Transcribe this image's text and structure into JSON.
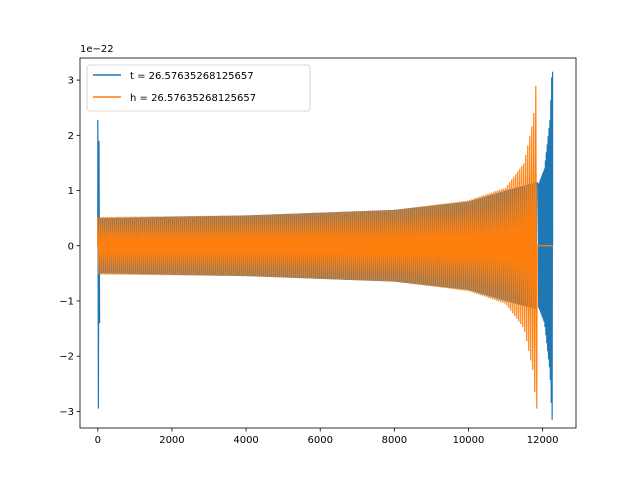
{
  "chart_data": {
    "type": "line",
    "title": "",
    "xlabel": "",
    "ylabel": "",
    "y_offset_label": "1e−22",
    "xlim": [
      -480,
      12900
    ],
    "ylim": [
      -3.3,
      3.4
    ],
    "x_ticks": [
      0,
      2000,
      4000,
      6000,
      8000,
      10000,
      12000
    ],
    "x_tick_labels": [
      "0",
      "2000",
      "4000",
      "6000",
      "8000",
      "10000",
      "12000"
    ],
    "y_ticks": [
      -3,
      -2,
      -1,
      0,
      1,
      2,
      3
    ],
    "y_tick_labels": [
      "−3",
      "−2",
      "−1",
      "0",
      "1",
      "2",
      "3"
    ],
    "grid": false,
    "legend_position": "upper-left",
    "series": [
      {
        "name": "t = 26.57635268125657",
        "color": "#1f77b4",
        "x_start": 0,
        "x_end": 12280,
        "burst": {
          "x": [
            0,
            30
          ],
          "min": -2.95,
          "max": 2.28
        },
        "chirp": {
          "x": [
            30,
            11850
          ],
          "envelope": [
            [
              30,
              0.5
            ],
            [
              4000,
              0.55
            ],
            [
              8000,
              0.65
            ],
            [
              10000,
              0.8
            ],
            [
              11000,
              1.0
            ],
            [
              11850,
              1.15
            ]
          ]
        },
        "gap": {
          "x": [
            11850,
            11880
          ]
        },
        "ringdown": {
          "x": [
            11880,
            12270
          ],
          "envelope": [
            [
              11880,
              1.1
            ],
            [
              12050,
              1.4
            ],
            [
              12200,
              2.3
            ],
            [
              12250,
              3.15
            ]
          ],
          "min": -2.78
        },
        "tail_zero": [
          12270,
          12280
        ]
      },
      {
        "name": "h = 26.57635268125657",
        "color": "#ff7f0e",
        "x_start": 0,
        "x_end": 12280,
        "chirp": {
          "x": [
            0,
            11850
          ],
          "envelope": [
            [
              0,
              0.52
            ],
            [
              4000,
              0.55
            ],
            [
              8000,
              0.65
            ],
            [
              10000,
              0.82
            ],
            [
              11000,
              1.05
            ],
            [
              11500,
              1.5
            ],
            [
              11750,
              2.3
            ],
            [
              11840,
              3.12
            ]
          ],
          "min": -2.95
        },
        "flat_after": [
          11850,
          12280
        ]
      }
    ]
  }
}
